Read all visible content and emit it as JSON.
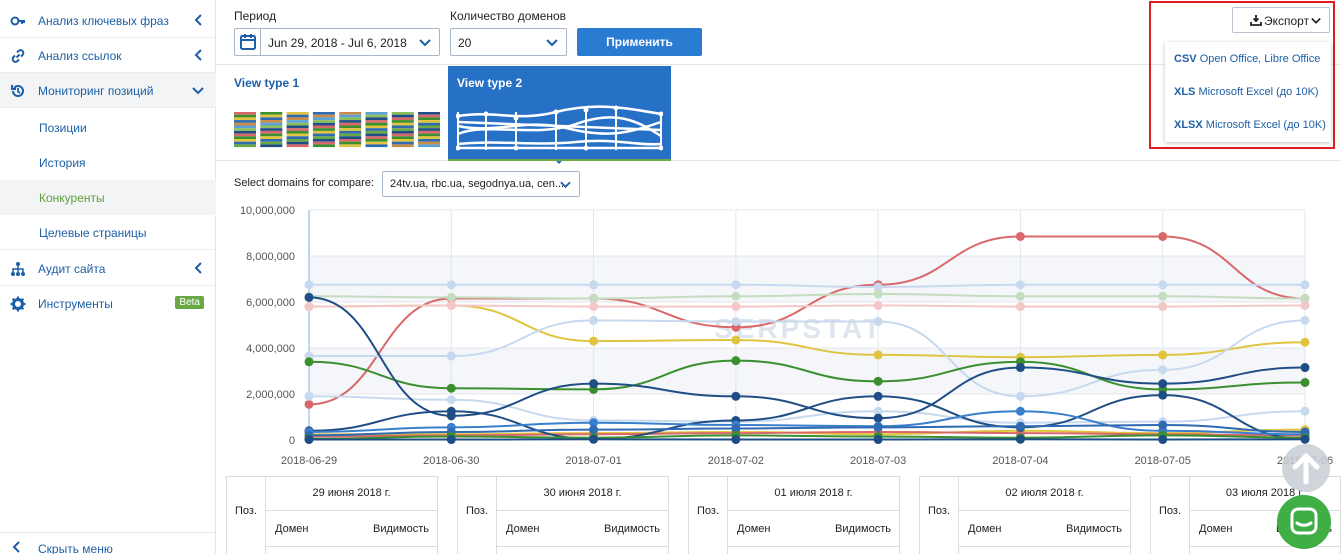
{
  "sidebar": {
    "items": [
      {
        "label": "Анализ ключевых фраз",
        "icon": "key-icon"
      },
      {
        "label": "Анализ ссылок",
        "icon": "link-icon"
      },
      {
        "label": "Мониторинг позиций",
        "icon": "history-icon"
      }
    ],
    "sub_items": [
      {
        "label": "Позиции"
      },
      {
        "label": "История"
      },
      {
        "label": "Конкуренты"
      },
      {
        "label": "Целевые страницы"
      }
    ],
    "items2": [
      {
        "label": "Аудит сайта",
        "icon": "sitemap-icon"
      },
      {
        "label": "Инструменты",
        "icon": "gear-icon",
        "badge": "Beta"
      }
    ],
    "hide_menu": "Скрыть меню"
  },
  "controls": {
    "period_label": "Период",
    "period_value": "Jun 29, 2018 - Jul 6, 2018",
    "domains_label": "Количество доменов",
    "domains_value": "20",
    "apply_label": "Применить"
  },
  "export": {
    "button_label": "Экспорт",
    "options": [
      {
        "format": "CSV",
        "desc": "Open Office, Libre Office"
      },
      {
        "format": "XLS",
        "desc": "Microsoft Excel (до 10K)"
      },
      {
        "format": "XLSX",
        "desc": "Microsoft Excel (до 10K)"
      }
    ]
  },
  "view_types": {
    "type1": "View type 1",
    "type2": "View type 2"
  },
  "compare": {
    "label": "Select domains for compare:",
    "value": "24tv.ua, rbc.ua, segodnya.ua, cen..."
  },
  "watermark": "SERPSTAT",
  "chart_data": {
    "type": "line",
    "x": [
      "2018-06-29",
      "2018-06-30",
      "2018-07-01",
      "2018-07-02",
      "2018-07-03",
      "2018-07-04",
      "2018-07-05",
      "2018-07-06"
    ],
    "yticks": [
      "0",
      "2,000,000",
      "4,000,000",
      "6,000,000",
      "8,000,000",
      "10,000,000"
    ],
    "ylim": [
      0,
      10000000
    ],
    "series": [
      {
        "color": "#d9686a",
        "values": [
          1550000,
          6150000,
          6150000,
          4900000,
          6750000,
          8850000,
          8850000,
          6150000
        ]
      },
      {
        "color": "#e0c440",
        "values": [
          5800000,
          5850000,
          4300000,
          4350000,
          3700000,
          3600000,
          3700000,
          4250000
        ]
      },
      {
        "color": "#3a8f2e",
        "values": [
          3400000,
          2250000,
          2200000,
          3450000,
          2550000,
          3400000,
          2200000,
          2500000
        ]
      },
      {
        "color": "#1f4e86",
        "values": [
          6200000,
          1050000,
          2450000,
          1900000,
          950000,
          3150000,
          2450000,
          3150000
        ]
      },
      {
        "color": "#1f4e86",
        "values": [
          400000,
          1250000,
          50000,
          850000,
          1900000,
          550000,
          1950000,
          50000
        ]
      },
      {
        "color": "#3a7fcb",
        "values": [
          350000,
          550000,
          750000,
          650000,
          600000,
          1250000,
          400000,
          250000
        ]
      },
      {
        "color": "#2f6bb0",
        "values": [
          200000,
          350000,
          450000,
          500000,
          550000,
          600000,
          650000,
          350000
        ]
      },
      {
        "color": "#e0c440",
        "values": [
          250000,
          250000,
          300000,
          350000,
          250000,
          400000,
          300000,
          450000
        ]
      },
      {
        "color": "#d9686a",
        "values": [
          150000,
          200000,
          250000,
          300000,
          350000,
          300000,
          250000,
          200000
        ]
      },
      {
        "color": "#3a8f2e",
        "values": [
          50000,
          150000,
          100000,
          200000,
          150000,
          100000,
          200000,
          100000
        ]
      },
      {
        "color": "#1f4e86",
        "values": [
          20000,
          20000,
          30000,
          20000,
          20000,
          30000,
          20000,
          30000
        ]
      },
      {
        "color": "#c7d9ee",
        "values": [
          6750000,
          6750000,
          6750000,
          6750000,
          6650000,
          6750000,
          6750000,
          6750000
        ]
      },
      {
        "color": "#c5dcc0",
        "values": [
          6250000,
          6200000,
          6150000,
          6250000,
          6350000,
          6250000,
          6250000,
          6150000
        ]
      },
      {
        "color": "#c7d9ee",
        "values": [
          3650000,
          3650000,
          5200000,
          5150000,
          5150000,
          1900000,
          3050000,
          5200000
        ]
      },
      {
        "color": "#f3c7c8",
        "values": [
          5800000,
          5850000,
          5800000,
          5800000,
          5850000,
          5800000,
          5800000,
          5850000
        ]
      },
      {
        "color": "#c7d9ee",
        "values": [
          1900000,
          1750000,
          850000,
          800000,
          1250000,
          750000,
          800000,
          1250000
        ]
      }
    ]
  },
  "tables": [
    {
      "pos": "Поз.",
      "date": "29 июня 2018 г.",
      "domain": "Домен",
      "visibility": "Видимость"
    },
    {
      "pos": "Поз.",
      "date": "30 июня 2018 г.",
      "domain": "Домен",
      "visibility": "Видимость"
    },
    {
      "pos": "Поз.",
      "date": "01 июля 2018 г.",
      "domain": "Домен",
      "visibility": "Видимость"
    },
    {
      "pos": "Поз.",
      "date": "02 июля 2018 г.",
      "domain": "Домен",
      "visibility": "Видимость"
    },
    {
      "pos": "Поз.",
      "date": "03 июля 2018 г.",
      "domain": "Домен",
      "visibility": "Видимость"
    }
  ]
}
